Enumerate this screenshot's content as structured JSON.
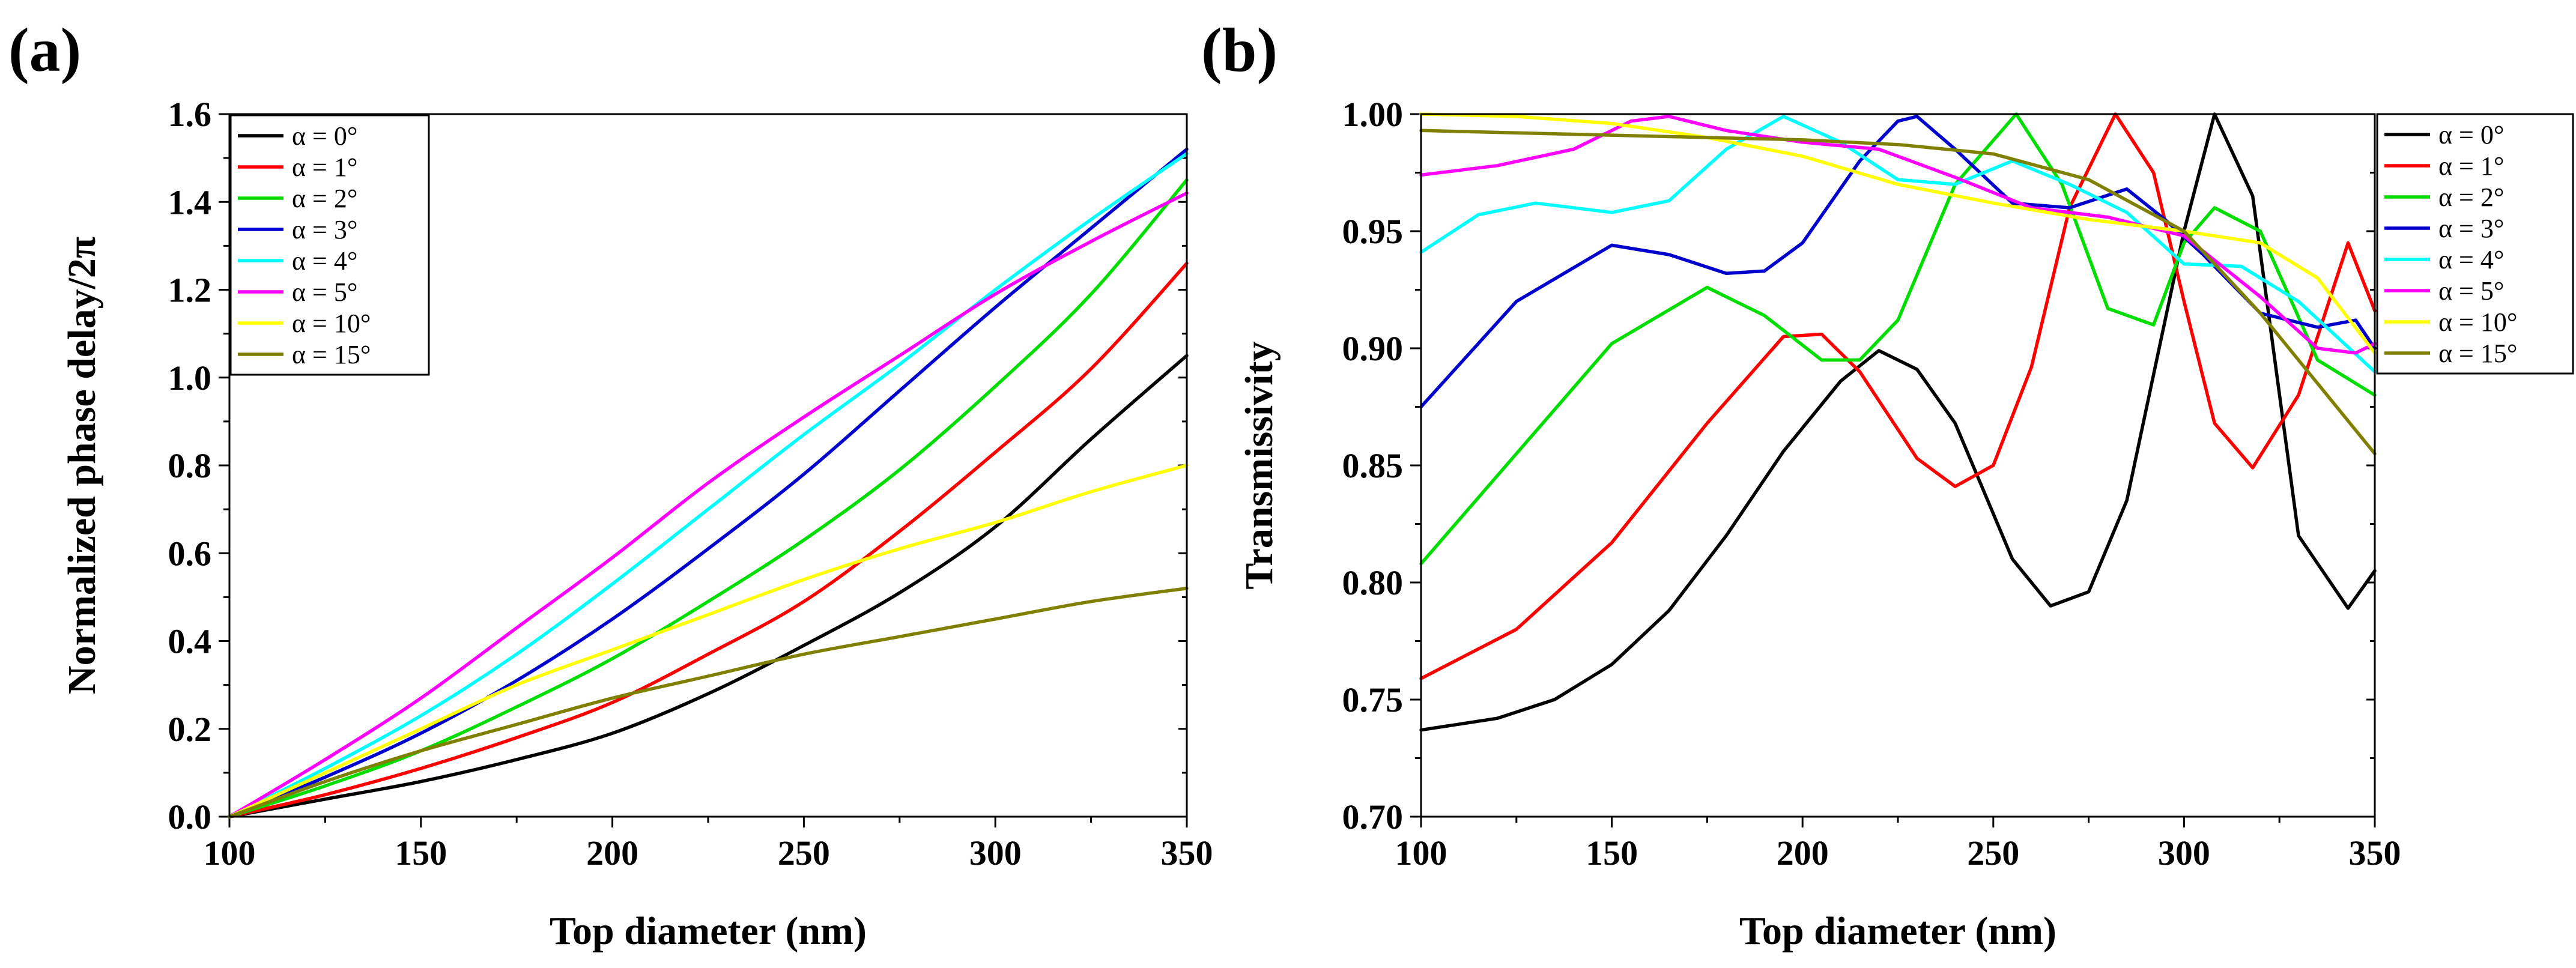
{
  "chart_data": [
    {
      "panel": "(a)",
      "type": "line",
      "title": "",
      "xlabel": "Top diameter (nm)",
      "ylabel": "Normalized phase delay/2π",
      "xlim": [
        100,
        350
      ],
      "ylim": [
        0,
        1.6
      ],
      "xticks": [
        "100",
        "150",
        "200",
        "250",
        "300",
        "350"
      ],
      "yticks": [
        "0.0",
        "0.2",
        "0.4",
        "0.6",
        "0.8",
        "1.0",
        "1.2",
        "1.4",
        "1.6"
      ],
      "legend_position": "top-left",
      "x": [
        100,
        125,
        150,
        175,
        200,
        225,
        250,
        275,
        300,
        325,
        350
      ],
      "series": [
        {
          "name": "α = 0°",
          "color": "#000000",
          "values": [
            0,
            0.04,
            0.08,
            0.13,
            0.19,
            0.28,
            0.39,
            0.51,
            0.66,
            0.86,
            1.05
          ]
        },
        {
          "name": "α = 1°",
          "color": "#ff0000",
          "values": [
            0,
            0.05,
            0.11,
            0.18,
            0.26,
            0.37,
            0.49,
            0.65,
            0.83,
            1.02,
            1.26
          ]
        },
        {
          "name": "α = 2°",
          "color": "#00dd00",
          "values": [
            0,
            0.07,
            0.15,
            0.25,
            0.36,
            0.49,
            0.63,
            0.79,
            0.98,
            1.19,
            1.45
          ]
        },
        {
          "name": "α = 3°",
          "color": "#0000cc",
          "values": [
            0,
            0.09,
            0.19,
            0.31,
            0.45,
            0.61,
            0.78,
            0.97,
            1.16,
            1.34,
            1.52
          ]
        },
        {
          "name": "α = 4°",
          "color": "#00ffff",
          "values": [
            0,
            0.11,
            0.23,
            0.37,
            0.53,
            0.7,
            0.87,
            1.03,
            1.2,
            1.36,
            1.51
          ]
        },
        {
          "name": "α = 5°",
          "color": "#ff00ff",
          "values": [
            0,
            0.13,
            0.27,
            0.43,
            0.59,
            0.76,
            0.91,
            1.05,
            1.19,
            1.31,
            1.42
          ]
        },
        {
          "name": "α = 10°",
          "color": "#ffff00",
          "values": [
            0,
            0.1,
            0.2,
            0.3,
            0.38,
            0.46,
            0.54,
            0.61,
            0.67,
            0.74,
            0.8
          ]
        },
        {
          "name": "α = 15°",
          "color": "#808000",
          "values": [
            0,
            0.08,
            0.15,
            0.21,
            0.27,
            0.32,
            0.37,
            0.41,
            0.45,
            0.49,
            0.52
          ]
        }
      ]
    },
    {
      "panel": "(b)",
      "type": "line",
      "title": "",
      "xlabel": "Top diameter (nm)",
      "ylabel": "Transmissivity",
      "xlim": [
        100,
        350
      ],
      "ylim": [
        0.7,
        1.0
      ],
      "xticks": [
        "100",
        "150",
        "200",
        "250",
        "300",
        "350"
      ],
      "yticks": [
        "0.70",
        "0.75",
        "0.80",
        "0.85",
        "0.90",
        "0.95",
        "1.00"
      ],
      "legend_position": "right-outside",
      "series": [
        {
          "name": "α = 0°",
          "color": "#000000",
          "x": [
            100,
            120,
            135,
            150,
            165,
            180,
            195,
            210,
            220,
            230,
            240,
            255,
            265,
            275,
            285,
            300,
            308,
            318,
            330,
            343,
            350
          ],
          "values": [
            0.737,
            0.742,
            0.75,
            0.765,
            0.788,
            0.82,
            0.856,
            0.886,
            0.899,
            0.891,
            0.868,
            0.81,
            0.79,
            0.796,
            0.835,
            0.95,
            1.0,
            0.965,
            0.82,
            0.789,
            0.805
          ]
        },
        {
          "name": "α = 1°",
          "color": "#ff0000",
          "x": [
            100,
            125,
            150,
            175,
            195,
            205,
            215,
            230,
            240,
            250,
            260,
            270,
            282,
            292,
            300,
            308,
            318,
            330,
            343,
            350
          ],
          "values": [
            0.759,
            0.78,
            0.817,
            0.868,
            0.905,
            0.906,
            0.89,
            0.853,
            0.841,
            0.85,
            0.892,
            0.96,
            1.0,
            0.975,
            0.92,
            0.868,
            0.849,
            0.88,
            0.945,
            0.916
          ]
        },
        {
          "name": "α = 2°",
          "color": "#00dd00",
          "x": [
            100,
            125,
            150,
            175,
            190,
            205,
            215,
            225,
            240,
            256,
            268,
            280,
            292,
            300,
            308,
            320,
            335,
            350
          ],
          "values": [
            0.808,
            0.855,
            0.902,
            0.926,
            0.914,
            0.895,
            0.895,
            0.912,
            0.97,
            1.0,
            0.97,
            0.917,
            0.91,
            0.945,
            0.96,
            0.95,
            0.895,
            0.88
          ]
        },
        {
          "name": "α = 3°",
          "color": "#0000cc",
          "x": [
            100,
            125,
            150,
            165,
            180,
            190,
            200,
            215,
            225,
            230,
            240,
            255,
            270,
            285,
            295,
            305,
            320,
            335,
            345,
            350
          ],
          "values": [
            0.875,
            0.92,
            0.944,
            0.94,
            0.932,
            0.933,
            0.945,
            0.98,
            0.997,
            0.999,
            0.985,
            0.962,
            0.96,
            0.968,
            0.955,
            0.94,
            0.915,
            0.909,
            0.912,
            0.9
          ]
        },
        {
          "name": "α = 4°",
          "color": "#00ffff",
          "x": [
            100,
            115,
            130,
            150,
            165,
            180,
            195,
            210,
            225,
            240,
            255,
            270,
            285,
            300,
            315,
            330,
            350
          ],
          "values": [
            0.941,
            0.957,
            0.962,
            0.958,
            0.963,
            0.985,
            0.999,
            0.988,
            0.972,
            0.97,
            0.98,
            0.97,
            0.958,
            0.936,
            0.935,
            0.92,
            0.89
          ]
        },
        {
          "name": "α = 5°",
          "color": "#ff00ff",
          "x": [
            100,
            120,
            140,
            155,
            165,
            180,
            200,
            220,
            240,
            260,
            280,
            300,
            320,
            335,
            345,
            350
          ],
          "values": [
            0.974,
            0.978,
            0.985,
            0.997,
            0.999,
            0.993,
            0.988,
            0.985,
            0.973,
            0.96,
            0.956,
            0.948,
            0.922,
            0.9,
            0.898,
            0.902
          ]
        },
        {
          "name": "α = 10°",
          "color": "#ffff00",
          "x": [
            100,
            125,
            150,
            175,
            200,
            225,
            250,
            275,
            300,
            320,
            335,
            350
          ],
          "values": [
            1.0,
            0.999,
            0.996,
            0.99,
            0.982,
            0.97,
            0.962,
            0.955,
            0.95,
            0.945,
            0.93,
            0.898
          ]
        },
        {
          "name": "α = 15°",
          "color": "#808000",
          "x": [
            100,
            125,
            150,
            175,
            200,
            225,
            250,
            275,
            300,
            320,
            335,
            350
          ],
          "values": [
            0.993,
            0.992,
            0.991,
            0.99,
            0.989,
            0.987,
            0.983,
            0.972,
            0.95,
            0.915,
            0.885,
            0.855
          ]
        }
      ]
    }
  ]
}
